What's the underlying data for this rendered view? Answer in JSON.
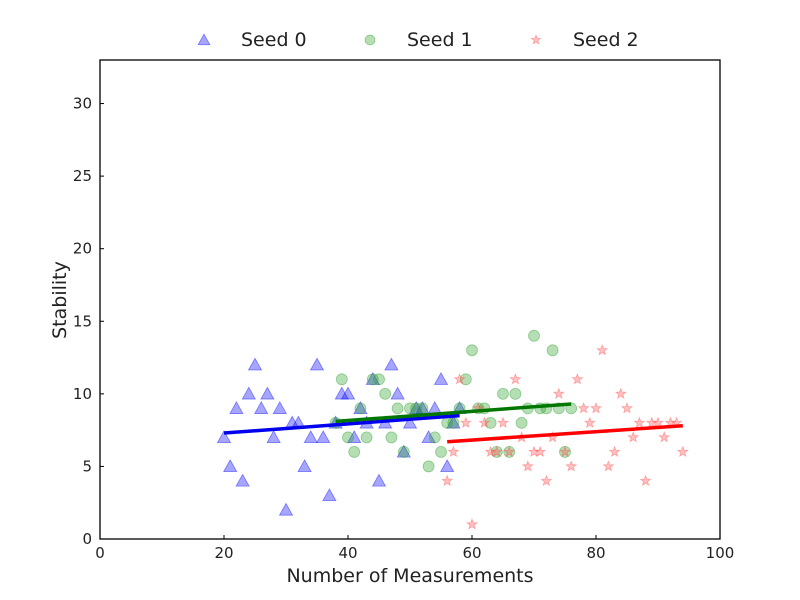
{
  "chart_data": {
    "type": "scatter",
    "xlabel": "Number of Measurements",
    "ylabel": "Stability",
    "xlim": [
      0,
      100
    ],
    "ylim": [
      0,
      33
    ],
    "xticks": [
      0,
      20,
      40,
      60,
      80,
      100
    ],
    "yticks": [
      0,
      5,
      10,
      15,
      20,
      25,
      30
    ],
    "grid": false,
    "legend_position": "top-center",
    "series": [
      {
        "name": "Seed 0",
        "marker": "triangle",
        "color": "#0000ff",
        "trend_color": "#0000ee",
        "trend": [
          [
            20,
            7.3
          ],
          [
            58,
            8.5
          ]
        ],
        "points": [
          [
            20,
            7
          ],
          [
            21,
            5
          ],
          [
            22,
            9
          ],
          [
            23,
            4
          ],
          [
            24,
            10
          ],
          [
            25,
            12
          ],
          [
            26,
            9
          ],
          [
            27,
            10
          ],
          [
            28,
            7
          ],
          [
            29,
            9
          ],
          [
            30,
            2
          ],
          [
            31,
            8
          ],
          [
            32,
            8
          ],
          [
            33,
            5
          ],
          [
            34,
            7
          ],
          [
            35,
            12
          ],
          [
            36,
            7
          ],
          [
            37,
            3
          ],
          [
            38,
            8
          ],
          [
            39,
            10
          ],
          [
            40,
            10
          ],
          [
            41,
            7
          ],
          [
            42,
            9
          ],
          [
            43,
            8
          ],
          [
            44,
            11
          ],
          [
            45,
            4
          ],
          [
            46,
            8
          ],
          [
            47,
            12
          ],
          [
            48,
            10
          ],
          [
            49,
            6
          ],
          [
            50,
            8
          ],
          [
            51,
            9
          ],
          [
            52,
            9
          ],
          [
            53,
            7
          ],
          [
            54,
            9
          ],
          [
            55,
            11
          ],
          [
            56,
            5
          ],
          [
            57,
            8
          ],
          [
            58,
            9
          ]
        ]
      },
      {
        "name": "Seed 1",
        "marker": "circle",
        "color": "#2ca02c",
        "trend_color": "#007700",
        "trend": [
          [
            38,
            8.1
          ],
          [
            76,
            9.3
          ]
        ],
        "points": [
          [
            38,
            8
          ],
          [
            39,
            11
          ],
          [
            40,
            7
          ],
          [
            41,
            6
          ],
          [
            42,
            9
          ],
          [
            43,
            7
          ],
          [
            44,
            11
          ],
          [
            45,
            11
          ],
          [
            46,
            10
          ],
          [
            47,
            7
          ],
          [
            48,
            9
          ],
          [
            49,
            6
          ],
          [
            50,
            9
          ],
          [
            51,
            9
          ],
          [
            52,
            9
          ],
          [
            53,
            5
          ],
          [
            54,
            7
          ],
          [
            55,
            6
          ],
          [
            56,
            8
          ],
          [
            57,
            8
          ],
          [
            58,
            9
          ],
          [
            59,
            11
          ],
          [
            60,
            13
          ],
          [
            61,
            9
          ],
          [
            62,
            9
          ],
          [
            63,
            8
          ],
          [
            64,
            6
          ],
          [
            65,
            10
          ],
          [
            66,
            6
          ],
          [
            67,
            10
          ],
          [
            68,
            8
          ],
          [
            69,
            9
          ],
          [
            70,
            14
          ],
          [
            71,
            9
          ],
          [
            72,
            9
          ],
          [
            73,
            13
          ],
          [
            74,
            9
          ],
          [
            75,
            6
          ],
          [
            76,
            9
          ]
        ]
      },
      {
        "name": "Seed 2",
        "marker": "star",
        "color": "#ff4d4d",
        "trend_color": "#ff0000",
        "trend": [
          [
            56,
            6.7
          ],
          [
            94,
            7.8
          ]
        ],
        "points": [
          [
            56,
            4
          ],
          [
            57,
            6
          ],
          [
            58,
            11
          ],
          [
            59,
            8
          ],
          [
            60,
            1
          ],
          [
            61,
            9
          ],
          [
            62,
            8
          ],
          [
            63,
            6
          ],
          [
            64,
            6
          ],
          [
            65,
            8
          ],
          [
            66,
            6
          ],
          [
            67,
            11
          ],
          [
            68,
            7
          ],
          [
            69,
            5
          ],
          [
            70,
            6
          ],
          [
            71,
            6
          ],
          [
            72,
            4
          ],
          [
            73,
            7
          ],
          [
            74,
            10
          ],
          [
            75,
            6
          ],
          [
            76,
            5
          ],
          [
            77,
            11
          ],
          [
            78,
            9
          ],
          [
            79,
            8
          ],
          [
            80,
            9
          ],
          [
            81,
            13
          ],
          [
            82,
            5
          ],
          [
            83,
            6
          ],
          [
            84,
            10
          ],
          [
            85,
            9
          ],
          [
            86,
            7
          ],
          [
            87,
            8
          ],
          [
            88,
            4
          ],
          [
            89,
            8
          ],
          [
            90,
            8
          ],
          [
            91,
            7
          ],
          [
            92,
            8
          ],
          [
            93,
            8
          ],
          [
            94,
            6
          ]
        ]
      }
    ]
  }
}
